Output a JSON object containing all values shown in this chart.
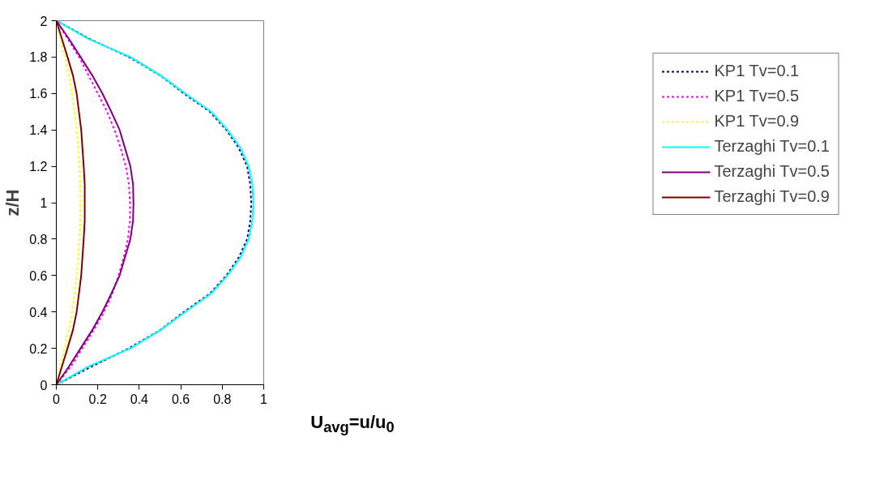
{
  "chart_data": {
    "type": "line",
    "xlabel": "U$_{avg}$=u/u$_{0}$",
    "ylabel": "z/H",
    "xlim": [
      0,
      1
    ],
    "xticks": [
      0,
      0.2,
      0.4,
      0.6,
      0.8,
      1
    ],
    "ylim": [
      0,
      2
    ],
    "yticks": [
      0,
      0.2,
      0.4,
      0.6,
      0.8,
      1,
      1.2,
      1.4,
      1.6,
      1.8,
      2
    ],
    "grid": false,
    "legend": "right",
    "marker": "none",
    "series": [
      {
        "name": "KP1 Tv=0.1",
        "color": "#000080",
        "line_style": "dotted",
        "x": [
          0,
          0.17,
          0.35,
          0.5,
          0.615,
          0.74,
          0.82,
          0.88,
          0.92,
          0.935,
          0.94,
          0.935,
          0.92,
          0.88,
          0.82,
          0.74,
          0.615,
          0.5,
          0.35,
          0.16,
          0
        ],
        "values": [
          0,
          0.1,
          0.2,
          0.3,
          0.4,
          0.5,
          0.6,
          0.7,
          0.8,
          0.9,
          1,
          1.1,
          1.2,
          1.3,
          1.4,
          1.5,
          1.6,
          1.7,
          1.8,
          1.9,
          2
        ]
      },
      {
        "name": "KP1 Tv=0.5",
        "color": "#ff00ff",
        "line_style": "dotted",
        "x": [
          0,
          0.07,
          0.125,
          0.18,
          0.23,
          0.27,
          0.3,
          0.325,
          0.345,
          0.355,
          0.355,
          0.35,
          0.335,
          0.31,
          0.28,
          0.245,
          0.2,
          0.155,
          0.11,
          0.055,
          0
        ],
        "values": [
          0,
          0.1,
          0.2,
          0.3,
          0.4,
          0.5,
          0.6,
          0.7,
          0.8,
          0.9,
          1,
          1.1,
          1.2,
          1.3,
          1.4,
          1.5,
          1.6,
          1.7,
          1.8,
          1.9,
          2
        ]
      },
      {
        "name": "KP1 Tv=0.9",
        "color": "#ffff00",
        "line_style": "dotted",
        "x": [
          0,
          0.02,
          0.04,
          0.06,
          0.075,
          0.088,
          0.098,
          0.105,
          0.11,
          0.115,
          0.117,
          0.115,
          0.11,
          0.105,
          0.098,
          0.088,
          0.075,
          0.06,
          0.04,
          0.02,
          0
        ],
        "values": [
          0,
          0.1,
          0.2,
          0.3,
          0.4,
          0.5,
          0.6,
          0.7,
          0.8,
          0.9,
          1,
          1.1,
          1.2,
          1.3,
          1.4,
          1.5,
          1.6,
          1.7,
          1.8,
          1.9,
          2
        ]
      },
      {
        "name": "Terzaghi Tv=0.1",
        "color": "#00ffff",
        "line_style": "solid",
        "x": [
          0,
          0.153,
          0.357,
          0.502,
          0.621,
          0.746,
          0.825,
          0.888,
          0.927,
          0.945,
          0.95,
          0.945,
          0.927,
          0.888,
          0.825,
          0.746,
          0.621,
          0.502,
          0.357,
          0.153,
          0
        ],
        "values": [
          0,
          0.1,
          0.2,
          0.3,
          0.4,
          0.5,
          0.6,
          0.7,
          0.8,
          0.9,
          1,
          1.1,
          1.2,
          1.3,
          1.4,
          1.5,
          1.6,
          1.7,
          1.8,
          1.9,
          2
        ]
      },
      {
        "name": "Terzaghi Tv=0.5",
        "color": "#800080",
        "line_style": "solid",
        "x": [
          0,
          0.061,
          0.117,
          0.173,
          0.222,
          0.265,
          0.305,
          0.331,
          0.357,
          0.37,
          0.372,
          0.37,
          0.357,
          0.331,
          0.305,
          0.265,
          0.222,
          0.173,
          0.117,
          0.061,
          0
        ],
        "values": [
          0,
          0.1,
          0.2,
          0.3,
          0.4,
          0.5,
          0.6,
          0.7,
          0.8,
          0.9,
          1,
          1.1,
          1.2,
          1.3,
          1.4,
          1.5,
          1.6,
          1.7,
          1.8,
          1.9,
          2
        ]
      },
      {
        "name": "Terzaghi Tv=0.9",
        "color": "#800000",
        "line_style": "solid",
        "x": [
          0,
          0.027,
          0.054,
          0.08,
          0.098,
          0.109,
          0.12,
          0.126,
          0.132,
          0.137,
          0.137,
          0.137,
          0.132,
          0.126,
          0.12,
          0.109,
          0.098,
          0.08,
          0.054,
          0.027,
          0
        ],
        "values": [
          0,
          0.1,
          0.2,
          0.3,
          0.4,
          0.5,
          0.6,
          0.7,
          0.8,
          0.9,
          1,
          1.1,
          1.2,
          1.3,
          1.4,
          1.5,
          1.6,
          1.7,
          1.8,
          1.9,
          2
        ]
      }
    ]
  }
}
